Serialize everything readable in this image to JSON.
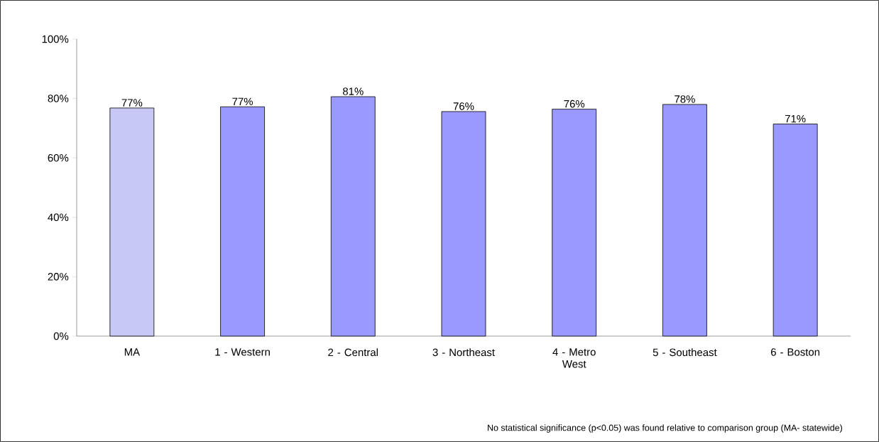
{
  "chart_data": {
    "type": "bar",
    "categories": [
      "MA",
      "1 - Western",
      "2 - Central",
      "3 - Northeast",
      "4 - Metro West",
      "5 - Southeast",
      "6 - Boston"
    ],
    "values": [
      76.8,
      77.2,
      80.6,
      75.6,
      76.4,
      78.0,
      71.4
    ],
    "value_labels": [
      "77%",
      "77%",
      "81%",
      "76%",
      "76%",
      "78%",
      "71%"
    ],
    "colors": [
      "#c8c8f4",
      "#9999ff",
      "#9999ff",
      "#9999ff",
      "#9999ff",
      "#9999ff",
      "#9999ff"
    ],
    "ylim": [
      0,
      100
    ],
    "yticks": [
      {
        "value": 0,
        "label": "0%"
      },
      {
        "value": 20,
        "label": "20%"
      },
      {
        "value": 40,
        "label": "40%"
      },
      {
        "value": 60,
        "label": "60%"
      },
      {
        "value": 80,
        "label": "80%"
      },
      {
        "value": 100,
        "label": "100%"
      }
    ],
    "grid": false,
    "annotations": [
      "No statistical significance (p<0.05) was found relative to comparison group (MA- statewide)"
    ]
  }
}
